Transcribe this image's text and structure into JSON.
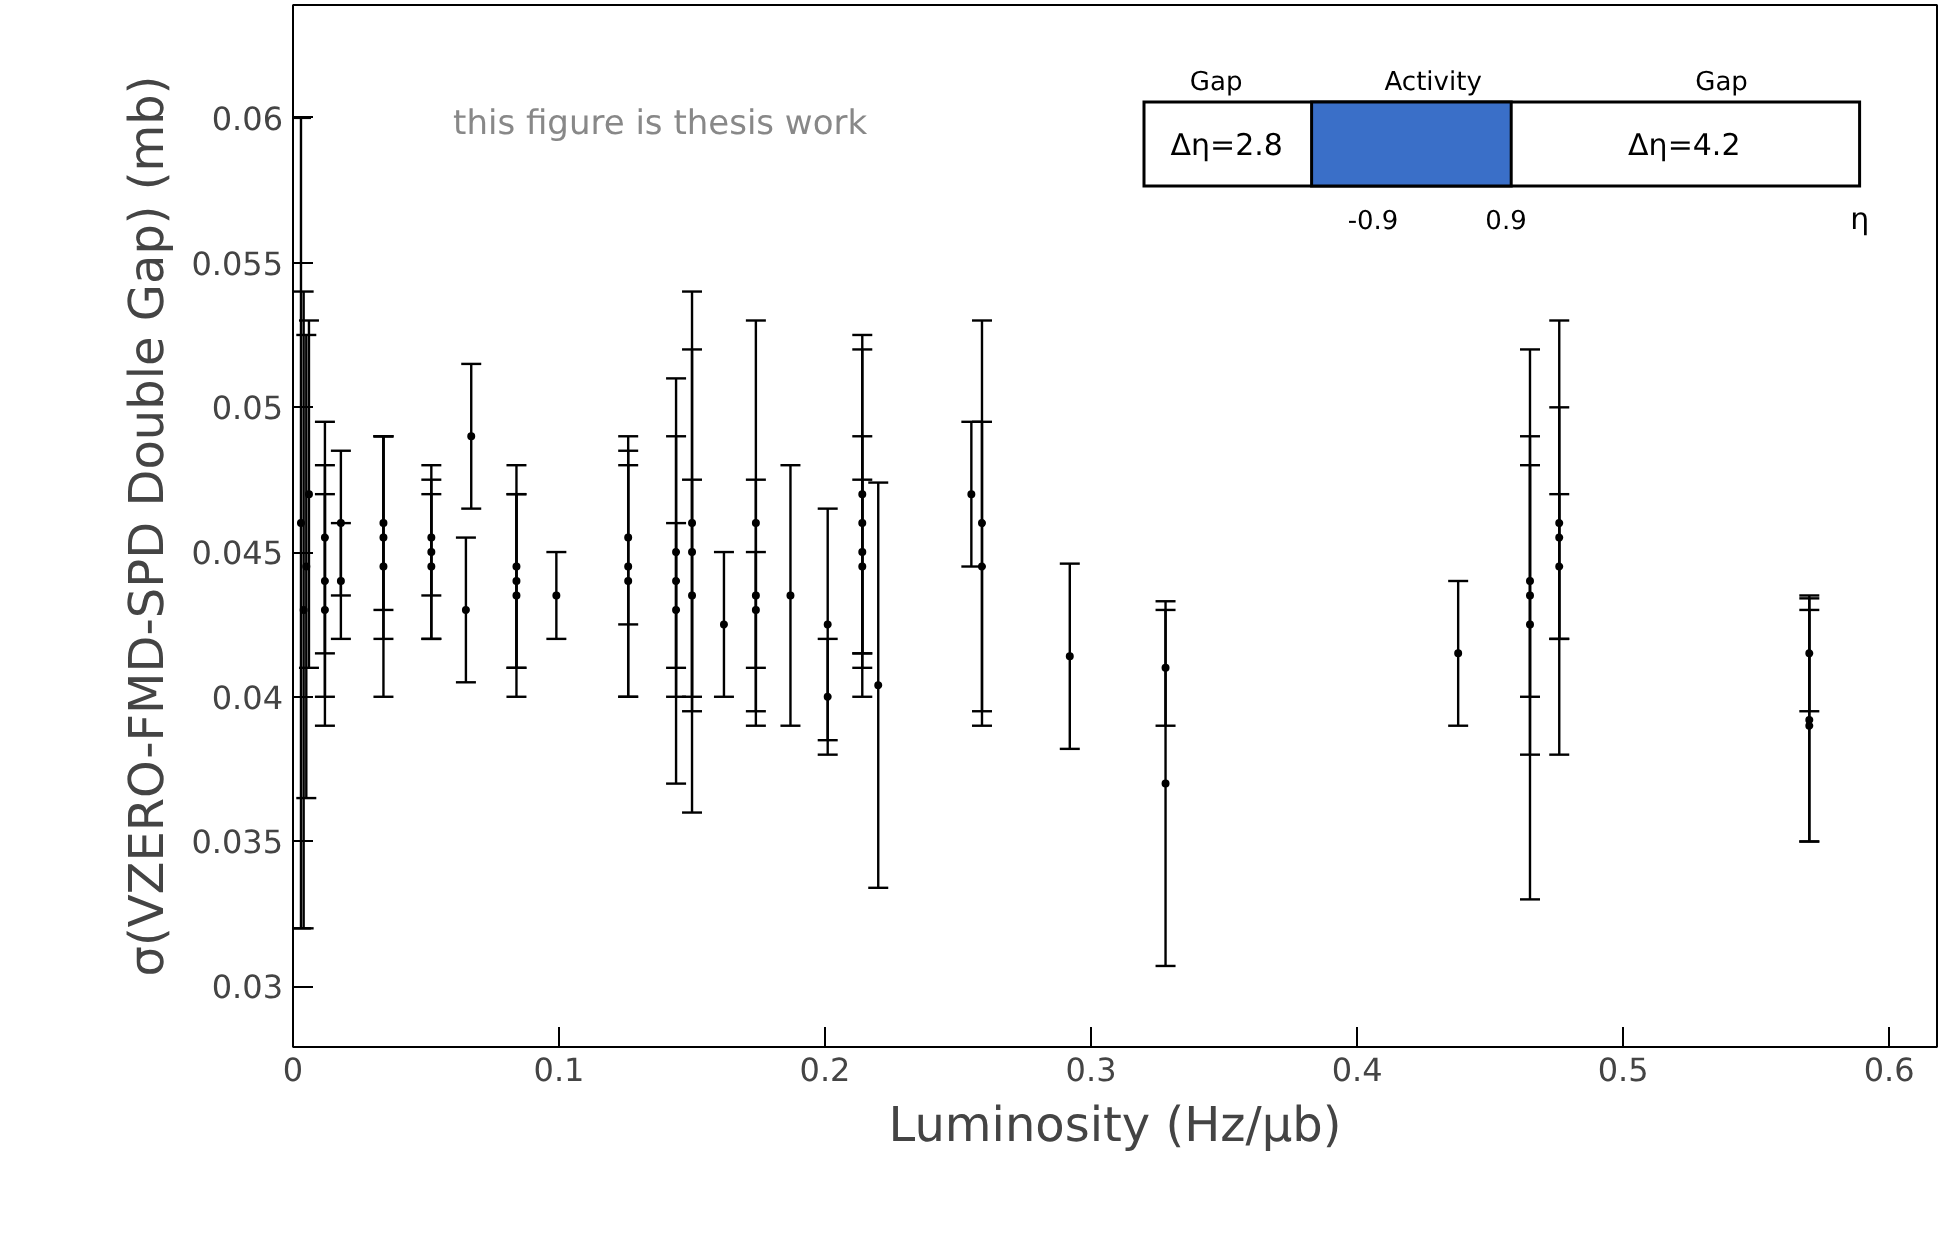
{
  "chart_data": {
    "type": "scatter",
    "xlabel": "Luminosity (Hz/μb)",
    "ylabel": "σ(VZERO-FMD-SPD Double Gap) (mb)",
    "x": [
      0.003,
      0.004,
      0.005,
      0.006,
      0.012,
      0.012,
      0.012,
      0.018,
      0.018,
      0.034,
      0.034,
      0.034,
      0.052,
      0.052,
      0.052,
      0.065,
      0.067,
      0.084,
      0.084,
      0.084,
      0.099,
      0.126,
      0.126,
      0.126,
      0.144,
      0.144,
      0.144,
      0.15,
      0.15,
      0.15,
      0.162,
      0.174,
      0.174,
      0.174,
      0.187,
      0.201,
      0.201,
      0.214,
      0.214,
      0.214,
      0.214,
      0.22,
      0.255,
      0.259,
      0.259,
      0.292,
      0.328,
      0.328,
      0.438,
      0.465,
      0.465,
      0.465,
      0.476,
      0.476,
      0.476,
      0.57,
      0.57,
      0.57
    ],
    "values": [
      0.046,
      0.043,
      0.0445,
      0.047,
      0.0455,
      0.044,
      0.043,
      0.046,
      0.044,
      0.0445,
      0.046,
      0.0455,
      0.045,
      0.0445,
      0.0455,
      0.043,
      0.049,
      0.0435,
      0.044,
      0.0445,
      0.0435,
      0.0445,
      0.044,
      0.0455,
      0.044,
      0.045,
      0.043,
      0.045,
      0.046,
      0.0435,
      0.0425,
      0.046,
      0.0435,
      0.043,
      0.0435,
      0.0425,
      0.04,
      0.047,
      0.0445,
      0.045,
      0.046,
      0.0404,
      0.047,
      0.046,
      0.0445,
      0.0414,
      0.037,
      0.041,
      0.0415,
      0.0425,
      0.0435,
      0.044,
      0.0455,
      0.046,
      0.0445,
      0.0392,
      0.039,
      0.0415
    ],
    "errors": [
      0.014,
      0.011,
      0.008,
      0.006,
      0.004,
      0.004,
      0.004,
      0.0025,
      0.002,
      0.0045,
      0.003,
      0.0035,
      0.003,
      0.0025,
      0.002,
      0.0025,
      0.0025,
      0.0035,
      0.003,
      0.0035,
      0.0015,
      0.0045,
      0.004,
      0.003,
      0.007,
      0.004,
      0.003,
      0.009,
      0.006,
      0.004,
      0.0025,
      0.007,
      0.004,
      0.002,
      0.0045,
      0.004,
      0.002,
      0.0055,
      0.003,
      0.004,
      0.006,
      0.007,
      0.0025,
      0.007,
      0.005,
      0.0032,
      0.0063,
      0.002,
      0.0025,
      0.0095,
      0.0055,
      0.004,
      0.0075,
      0.004,
      0.0025,
      0.0042,
      0.004,
      0.002
    ],
    "color": "#000000",
    "marker": "circle",
    "xlim": [
      0,
      0.618
    ],
    "ylim": [
      0.0279,
      0.0639
    ],
    "xticks": [
      0,
      0.1,
      0.2,
      0.3,
      0.4,
      0.5,
      0.6
    ],
    "yticks": [
      0.03,
      0.035,
      0.04,
      0.045,
      0.05,
      0.055,
      0.06
    ],
    "annotations": [
      "this figure is thesis work",
      "Gap",
      "Activity",
      "Gap",
      "Δη=2.8",
      "Δη=4.2",
      "-0.9",
      "0.9",
      "η"
    ]
  }
}
